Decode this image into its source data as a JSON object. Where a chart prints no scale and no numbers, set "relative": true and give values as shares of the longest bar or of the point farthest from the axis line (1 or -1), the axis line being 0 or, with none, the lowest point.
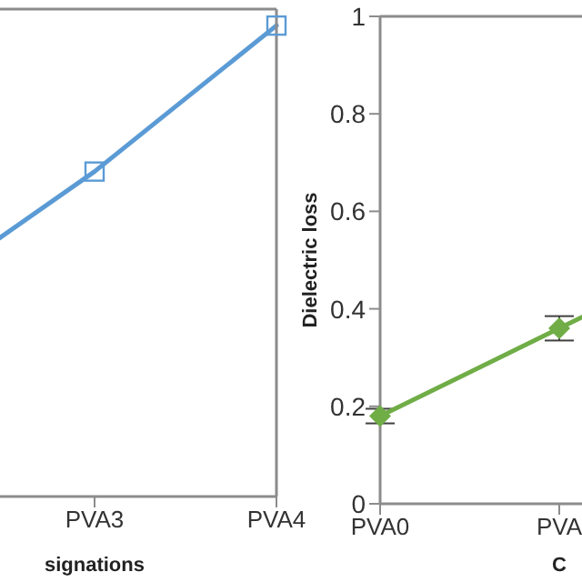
{
  "chart_data": [
    {
      "type": "line",
      "relative": true,
      "xlabel": "signations",
      "categories": [
        null,
        "PVA3",
        "PVA4"
      ],
      "marker": "square",
      "series": [
        {
          "color": "#5b9bd5",
          "values": [
            0.42,
            0.69,
            1
          ]
        }
      ]
    },
    {
      "type": "line",
      "ylabel": "Dielectric loss",
      "xlabel": "C",
      "categories": [
        "PVA0",
        "PVA",
        null
      ],
      "ylim": [
        0,
        1
      ],
      "yticks": [
        0,
        0.2,
        0.4,
        0.6,
        0.8,
        1
      ],
      "marker": "diamond",
      "series": [
        {
          "color": "#70ad47",
          "values": [
            0.18,
            0.36,
            0.54
          ],
          "errors": [
            0.015,
            0.025,
            null
          ]
        }
      ]
    }
  ]
}
